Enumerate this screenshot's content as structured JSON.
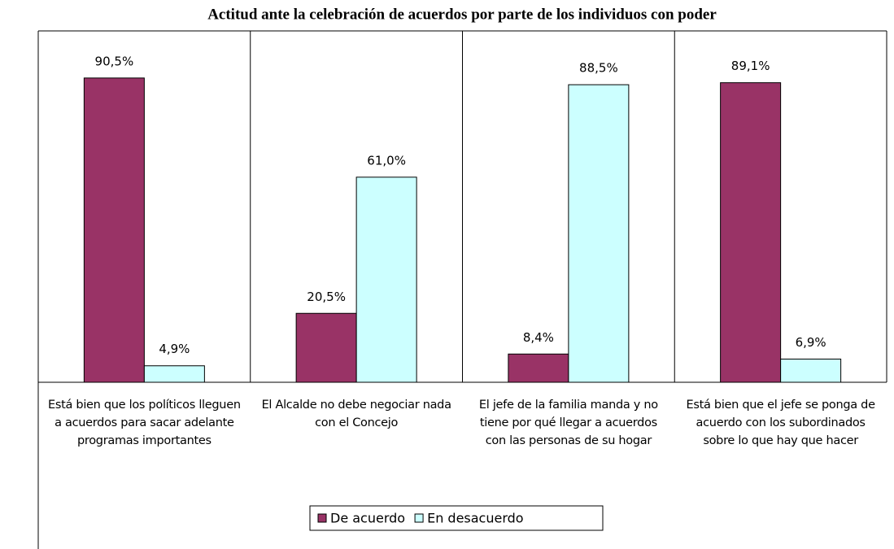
{
  "chart_data": {
    "type": "bar",
    "title": "Actitud ante la celebración de acuerdos por parte de los individuos con poder",
    "categories": [
      "Está bien que los políticos lleguen a acuerdos para sacar adelante programas importantes",
      "El Alcalde no debe negociar nada con el Concejo",
      "El jefe de la familia manda y no tiene por qué llegar a acuerdos con las personas de su hogar",
      "Está bien que el jefe se ponga de acuerdo con los subordinados sobre lo que hay que hacer"
    ],
    "series": [
      {
        "name": "De acuerdo",
        "color": "#993366",
        "values": [
          90.5,
          20.5,
          8.4,
          89.1
        ],
        "value_labels": [
          "90,5%",
          "20,5%",
          "8,4%",
          "89,1%"
        ]
      },
      {
        "name": "En desacuerdo",
        "color": "#ccffff",
        "values": [
          4.9,
          61.0,
          88.5,
          6.9
        ],
        "value_labels": [
          "4,9%",
          "61,0%",
          "88,5%",
          "6,9%"
        ]
      }
    ],
    "legend": "bottom"
  }
}
